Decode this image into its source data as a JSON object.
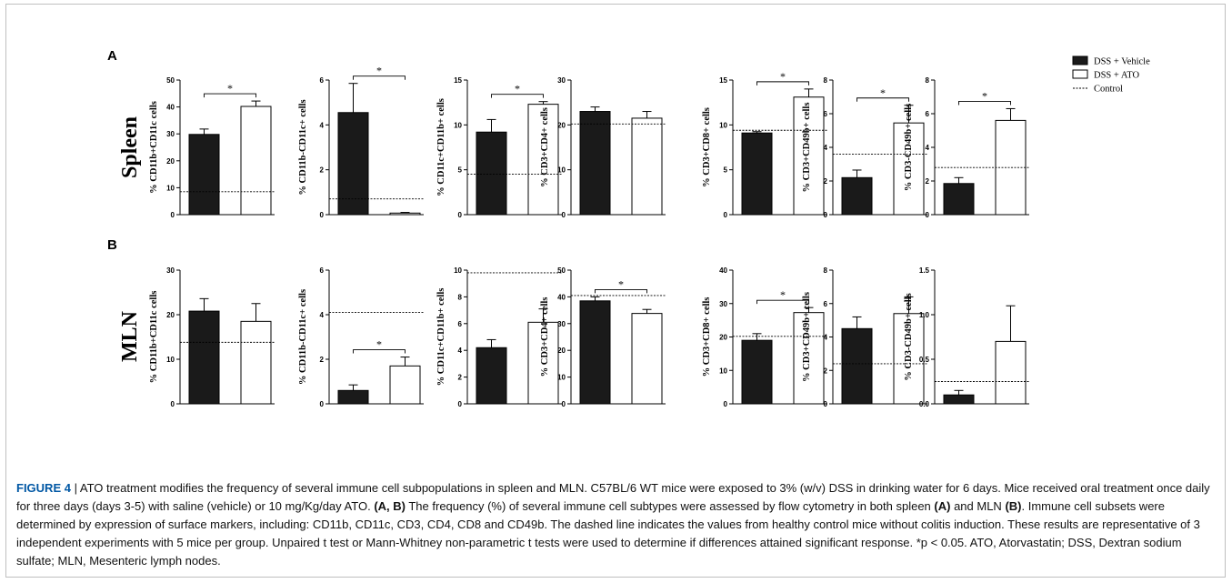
{
  "figure": {
    "label": "FIGURE 4",
    "separator": " | ",
    "caption_parts": [
      {
        "text": "ATO treatment modifies the frequency of several immune cell subpopulations in spleen and MLN. C57BL/6 WT mice were exposed to 3% (w/v) DSS in drinking water for 6 days. Mice received oral treatment once daily for three days (days 3-5) with saline (vehicle) or 10 mg/Kg/day ATO. ",
        "bold": false
      },
      {
        "text": "(A, B)",
        "bold": true
      },
      {
        "text": " The frequency (%) of several immune cell subtypes were assessed by flow cytometry in both spleen ",
        "bold": false
      },
      {
        "text": "(A)",
        "bold": true
      },
      {
        "text": " and MLN ",
        "bold": false
      },
      {
        "text": "(B)",
        "bold": true
      },
      {
        "text": ". Immune cell subsets were determined by expression of surface markers, including: CD11b, CD11c, CD3, CD4, CD8 and CD49b. The dashed line indicates the values from healthy control mice without colitis induction. These results are representative of 3 independent experiments with 5 mice per group. Unpaired t test or Mann-Whitney non-parametric t tests were used to determine if differences attained significant response. *p < 0.05. ATO, Atorvastatin; DSS, Dextran sodium sulfate; MLN, Mesenteric lymph nodes.",
        "bold": false
      }
    ]
  },
  "legend": {
    "position": "top-right",
    "items": [
      {
        "label": "DSS + Vehicle",
        "kind": "filled-box"
      },
      {
        "label": "DSS + ATO",
        "kind": "open-box"
      },
      {
        "label": "Control",
        "kind": "dotted-line"
      }
    ]
  },
  "colors": {
    "vehicle_fill": "#1a1a1a",
    "ato_fill": "#ffffff",
    "axis": "#000000",
    "caption_label": "#0057a4"
  },
  "chart_data": [
    {
      "panel": "A",
      "row_label": "Spleen",
      "type": "bar",
      "categories": [
        "DSS + Vehicle",
        "DSS + ATO"
      ],
      "plots": [
        {
          "ylabel": "% CD11b+CD11c cells",
          "ylim": [
            0,
            50
          ],
          "ticks": [
            "0",
            "10",
            "20",
            "30",
            "40",
            "50"
          ],
          "values": [
            29.8,
            40.2
          ],
          "errors": [
            2.0,
            2.0
          ],
          "control": 8.5,
          "significance": "*"
        },
        {
          "ylabel": "% CD11b-CD11c+ cells",
          "ylim": [
            0,
            6
          ],
          "ticks": [
            "0",
            "2",
            "4",
            "6"
          ],
          "values": [
            4.55,
            0.07
          ],
          "errors": [
            1.3,
            0.03
          ],
          "control": 0.7,
          "significance": "*"
        },
        {
          "ylabel": "% CD11c+CD11b+ cells",
          "ylim": [
            0,
            15
          ],
          "ticks": [
            "0",
            "5",
            "10",
            "15"
          ],
          "values": [
            9.2,
            12.3
          ],
          "errors": [
            1.4,
            0.3
          ],
          "control": 4.5,
          "significance": "*"
        },
        {
          "ylabel": "% CD3+CD4+ cells",
          "ylim": [
            0,
            30
          ],
          "ticks": [
            "0",
            "10",
            "20",
            "30"
          ],
          "values": [
            23.0,
            21.5
          ],
          "errors": [
            1.0,
            1.5
          ],
          "control": 20.2,
          "significance": ""
        },
        {
          "ylabel": "% CD3+CD8+ cells",
          "ylim": [
            0,
            15
          ],
          "ticks": [
            "0",
            "5",
            "10",
            "15"
          ],
          "values": [
            9.1,
            13.1
          ],
          "errors": [
            0.15,
            0.9
          ],
          "control": 9.4,
          "significance": "*"
        },
        {
          "ylabel": "% CD3+CD49b+ cells",
          "ylim": [
            0,
            8
          ],
          "ticks": [
            "0",
            "2",
            "4",
            "6",
            "8"
          ],
          "values": [
            2.2,
            5.45
          ],
          "errors": [
            0.45,
            1.05
          ],
          "control": 3.6,
          "significance": "*"
        },
        {
          "ylabel": "% CD3-CD49b+ cells",
          "ylim": [
            0,
            8
          ],
          "ticks": [
            "0",
            "2",
            "4",
            "6",
            "8"
          ],
          "values": [
            1.85,
            5.6
          ],
          "errors": [
            0.35,
            0.7
          ],
          "control": 2.8,
          "significance": "*"
        }
      ]
    },
    {
      "panel": "B",
      "row_label": "MLN",
      "type": "bar",
      "categories": [
        "DSS + Vehicle",
        "DSS + ATO"
      ],
      "plots": [
        {
          "ylabel": "% CD11b+CD11c cells",
          "ylim": [
            0,
            30
          ],
          "ticks": [
            "0",
            "10",
            "20",
            "30"
          ],
          "values": [
            20.8,
            18.5
          ],
          "errors": [
            2.8,
            4.0
          ],
          "control": 13.8,
          "significance": ""
        },
        {
          "ylabel": "% CD11b-CD11c+ cells",
          "ylim": [
            0,
            6
          ],
          "ticks": [
            "0",
            "2",
            "4",
            "6"
          ],
          "values": [
            0.6,
            1.7
          ],
          "errors": [
            0.25,
            0.4
          ],
          "control": 4.1,
          "significance": "*"
        },
        {
          "ylabel": "% CD11c+CD11b+ cells",
          "ylim": [
            0,
            10
          ],
          "ticks": [
            "0",
            "2",
            "4",
            "6",
            "8",
            "10"
          ],
          "values": [
            4.2,
            6.1
          ],
          "errors": [
            0.6,
            1.0
          ],
          "control": 9.8,
          "significance": ""
        },
        {
          "ylabel": "% CD3+CD4+ cells",
          "ylim": [
            0,
            50
          ],
          "ticks": [
            "0",
            "10",
            "20",
            "30",
            "40",
            "50"
          ],
          "values": [
            38.5,
            33.8
          ],
          "errors": [
            1.5,
            1.5
          ],
          "control": 40.5,
          "significance": "*"
        },
        {
          "ylabel": "% CD3+CD8+ cells",
          "ylim": [
            0,
            40
          ],
          "ticks": [
            "0",
            "10",
            "20",
            "30",
            "40"
          ],
          "values": [
            19.0,
            27.3
          ],
          "errors": [
            2.0,
            1.5
          ],
          "control": 20.2,
          "significance": "*"
        },
        {
          "ylabel": "% CD3+CD49b+ cells",
          "ylim": [
            0,
            8
          ],
          "ticks": [
            "0",
            "2",
            "4",
            "6",
            "8"
          ],
          "values": [
            4.5,
            5.4
          ],
          "errors": [
            0.7,
            1.0
          ],
          "control": 2.4,
          "significance": ""
        },
        {
          "ylabel": "% CD3-CD49b+ cells",
          "ylim": [
            0,
            1.5
          ],
          "ticks": [
            "0.0",
            "0.5",
            "1.0",
            "1.5"
          ],
          "values": [
            0.1,
            0.7
          ],
          "errors": [
            0.05,
            0.4
          ],
          "control": 0.25,
          "significance": ""
        }
      ]
    }
  ]
}
